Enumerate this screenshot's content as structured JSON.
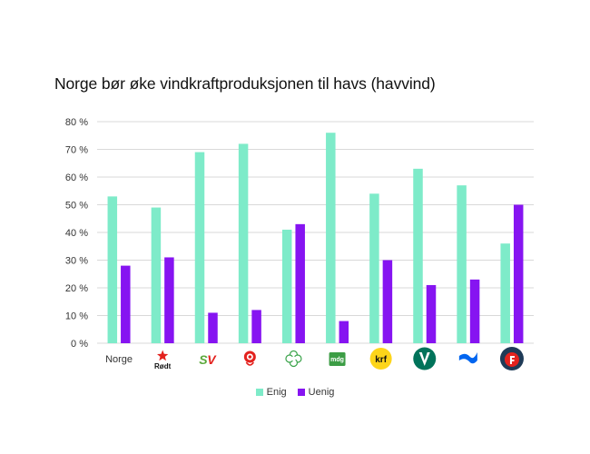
{
  "chart_data": {
    "type": "bar",
    "title": "Norge bør øke vindkraftproduksjonen til havs (havvind)",
    "xlabel": "",
    "ylabel": "",
    "ylim": [
      0,
      80
    ],
    "y_ticks": [
      "0 %",
      "10 %",
      "20 %",
      "30 %",
      "40 %",
      "50 %",
      "60 %",
      "70 %",
      "80 %"
    ],
    "grid": true,
    "legend_position": "bottom",
    "categories": [
      "Norge",
      "Rødt",
      "SV",
      "Ap",
      "Sp",
      "MDG",
      "KrF",
      "Venstre",
      "Høyre",
      "FrP"
    ],
    "category_labels": {
      "Norge": "Norge",
      "Rødt": "Rødt",
      "SV": "SV",
      "MDG": "mdg",
      "KrF": "krf"
    },
    "series": [
      {
        "name": "Enig",
        "color": "#7EEBC9",
        "values": [
          53,
          49,
          69,
          72,
          41,
          76,
          54,
          63,
          57,
          36
        ]
      },
      {
        "name": "Uenig",
        "color": "#8614F1",
        "values": [
          28,
          31,
          11,
          12,
          43,
          8,
          30,
          21,
          23,
          50
        ]
      }
    ]
  },
  "colors": {
    "grid": "#d9d9d9",
    "rodt": "#e3221e",
    "sv_green": "#5aa83a",
    "sv_red": "#e3221e",
    "ap": "#e3221e",
    "sp": "#3aa34a",
    "mdg": "#3c9d45",
    "krf": "#fdd51a",
    "venstre": "#00735a",
    "hoyre": "#0065f0",
    "frp": "#1f3b57",
    "frp_red": "#e3221e"
  },
  "icons": [
    "rodt-star-icon",
    "sv-logo-icon",
    "ap-rose-icon",
    "sp-clover-icon",
    "mdg-logo-icon",
    "krf-logo-icon",
    "venstre-v-icon",
    "hoyre-logo-icon",
    "frp-logo-icon"
  ]
}
